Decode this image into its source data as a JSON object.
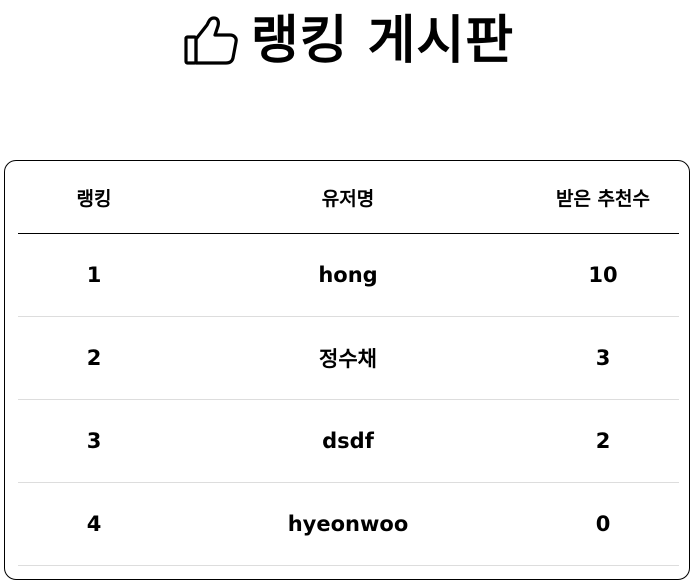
{
  "header": {
    "title": "랭킹 게시판",
    "icon": "thumbs-up-icon"
  },
  "table": {
    "columns": [
      "랭킹",
      "유저명",
      "받은 추천수"
    ],
    "rows": [
      {
        "rank": "1",
        "username": "hong",
        "recommendations": "10"
      },
      {
        "rank": "2",
        "username": "정수채",
        "recommendations": "3"
      },
      {
        "rank": "3",
        "username": "dsdf",
        "recommendations": "2"
      },
      {
        "rank": "4",
        "username": "hyeonwoo",
        "recommendations": "0"
      }
    ]
  }
}
